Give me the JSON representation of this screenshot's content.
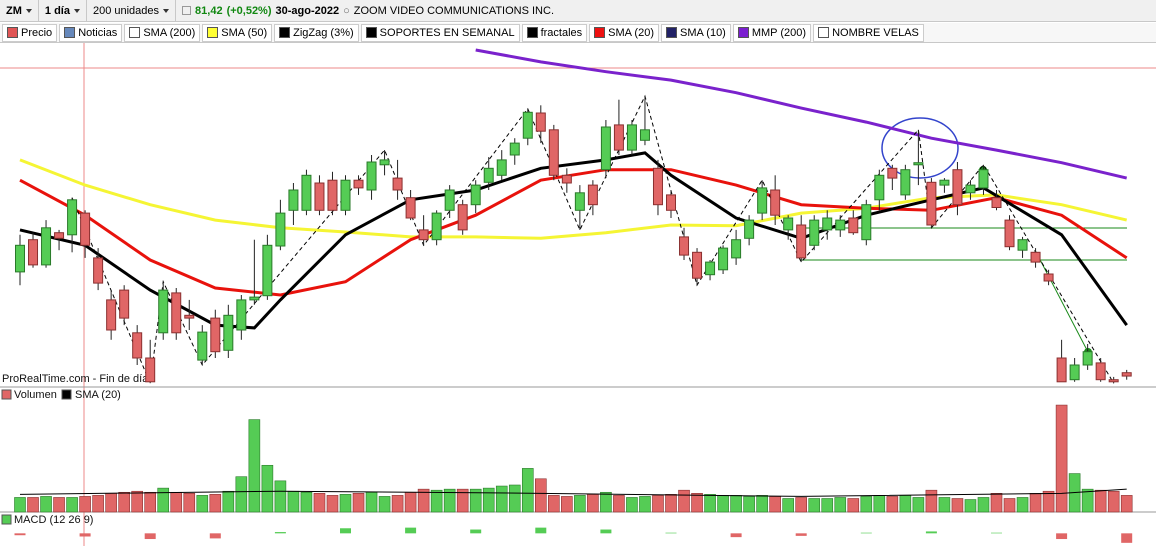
{
  "toolbar": {
    "symbol": "ZM",
    "period": "1 día",
    "units": "200 unidades",
    "price": "81,42",
    "change": "(+0,52%)",
    "date": "30-ago-2022",
    "name": "ZOOM VIDEO COMMUNICATIONS INC."
  },
  "legend": [
    {
      "label": "Precio",
      "color": "#e05555"
    },
    {
      "label": "Noticias",
      "color": "#6688bb"
    },
    {
      "label": "SMA (200)",
      "color": "#ffffff"
    },
    {
      "label": "SMA (50)",
      "color": "#ffff33"
    },
    {
      "label": "ZigZag (3%)",
      "color": "#000000"
    },
    {
      "label": "SOPORTES EN SEMANAL",
      "color": "#000000"
    },
    {
      "label": "fractales",
      "color": "#000000"
    },
    {
      "label": "SMA (20)",
      "color": "#ee1111"
    },
    {
      "label": "SMA (10)",
      "color": "#222266"
    },
    {
      "label": "MMP (200)",
      "color": "#7b1fd0"
    },
    {
      "label": "NOMBRE VELAS",
      "color": "#ffffff"
    }
  ],
  "watermark": "ProRealTime.com - Fin de día",
  "chart_data": [
    {
      "type": "candlestick",
      "ylim": [
        80,
        129
      ],
      "up_color": "#55cc55",
      "down_color": "#e06666",
      "candles": [
        [
          96.3,
          101.6,
          94.4,
          100.1
        ],
        [
          100.9,
          101.9,
          96.9,
          97.3
        ],
        [
          97.3,
          103.7,
          96.9,
          102.6
        ],
        [
          101.9,
          102.3,
          99.4,
          101.1
        ],
        [
          101.6,
          106.9,
          99.1,
          106.6
        ],
        [
          104.7,
          105.1,
          98.3,
          100.1
        ],
        [
          98.3,
          99.7,
          93.7,
          94.7
        ],
        [
          92.3,
          93.7,
          86.6,
          88.0
        ],
        [
          93.7,
          94.4,
          88.7,
          89.7
        ],
        [
          87.6,
          88.7,
          83.0,
          84.0
        ],
        [
          84.0,
          86.6,
          80.4,
          80.6
        ],
        [
          87.6,
          94.9,
          86.6,
          93.7
        ],
        [
          93.3,
          94.0,
          86.6,
          87.6
        ],
        [
          90.1,
          92.3,
          88.0,
          89.7
        ],
        [
          83.7,
          88.7,
          83.0,
          87.7
        ],
        [
          89.7,
          90.9,
          84.0,
          84.9
        ],
        [
          85.1,
          91.6,
          84.0,
          90.1
        ],
        [
          88.0,
          93.0,
          86.6,
          92.3
        ],
        [
          92.3,
          100.9,
          91.6,
          92.7
        ],
        [
          92.9,
          101.6,
          92.3,
          100.1
        ],
        [
          100.0,
          106.6,
          99.4,
          104.7
        ],
        [
          105.1,
          109.0,
          103.0,
          108.0
        ],
        [
          105.1,
          110.9,
          104.4,
          110.1
        ],
        [
          109.0,
          110.1,
          104.4,
          105.1
        ],
        [
          109.4,
          110.6,
          104.4,
          105.1
        ],
        [
          105.1,
          110.1,
          104.4,
          109.4
        ],
        [
          109.4,
          110.1,
          107.3,
          108.3
        ],
        [
          108.0,
          113.0,
          106.6,
          112.0
        ],
        [
          111.6,
          113.7,
          110.1,
          112.3
        ],
        [
          109.7,
          112.3,
          106.6,
          108.0
        ],
        [
          106.9,
          108.0,
          103.7,
          104.0
        ],
        [
          102.3,
          104.4,
          100.1,
          100.9
        ],
        [
          100.9,
          105.1,
          100.1,
          104.7
        ],
        [
          105.1,
          108.7,
          104.0,
          108.0
        ],
        [
          105.9,
          106.6,
          101.6,
          102.3
        ],
        [
          105.9,
          109.4,
          104.7,
          108.7
        ],
        [
          109.1,
          112.7,
          108.0,
          111.1
        ],
        [
          110.1,
          113.7,
          109.4,
          112.3
        ],
        [
          113.0,
          115.4,
          111.6,
          114.7
        ],
        [
          115.4,
          119.6,
          114.4,
          119.1
        ],
        [
          119.0,
          120.1,
          114.7,
          116.4
        ],
        [
          116.6,
          117.3,
          109.4,
          110.1
        ],
        [
          110.1,
          111.1,
          107.6,
          109.0
        ],
        [
          105.1,
          108.7,
          102.3,
          107.6
        ],
        [
          108.7,
          109.4,
          104.4,
          105.9
        ],
        [
          110.9,
          118.0,
          109.7,
          117.0
        ],
        [
          117.3,
          120.9,
          113.0,
          113.7
        ],
        [
          113.7,
          118.0,
          113.0,
          117.3
        ],
        [
          115.1,
          121.4,
          114.4,
          116.6
        ],
        [
          111.1,
          112.3,
          104.4,
          105.9
        ],
        [
          107.3,
          108.0,
          104.0,
          105.1
        ],
        [
          101.3,
          102.6,
          98.0,
          98.7
        ],
        [
          99.1,
          99.7,
          94.4,
          95.4
        ],
        [
          95.9,
          98.0,
          95.1,
          97.7
        ],
        [
          96.6,
          100.1,
          96.0,
          99.7
        ],
        [
          98.3,
          102.3,
          97.3,
          100.9
        ],
        [
          101.1,
          104.4,
          100.1,
          103.7
        ],
        [
          104.7,
          109.4,
          103.7,
          108.3
        ],
        [
          108.0,
          110.1,
          103.0,
          104.4
        ],
        [
          102.3,
          104.4,
          100.9,
          104.0
        ],
        [
          103.0,
          104.4,
          97.7,
          98.3
        ],
        [
          100.1,
          104.4,
          99.4,
          103.7
        ],
        [
          102.3,
          105.1,
          100.9,
          104.0
        ],
        [
          102.3,
          104.4,
          101.3,
          103.7
        ],
        [
          104.0,
          105.1,
          101.6,
          101.9
        ],
        [
          100.9,
          106.6,
          100.1,
          105.9
        ],
        [
          106.6,
          110.9,
          105.1,
          110.1
        ],
        [
          111.1,
          111.6,
          108.0,
          109.7
        ],
        [
          107.3,
          111.6,
          106.6,
          110.9
        ],
        [
          111.6,
          116.6,
          108.7,
          111.9
        ],
        [
          109.1,
          109.7,
          102.6,
          103.0
        ],
        [
          108.7,
          109.7,
          107.6,
          109.4
        ],
        [
          110.9,
          112.0,
          104.4,
          105.9
        ],
        [
          107.6,
          109.4,
          106.6,
          108.7
        ],
        [
          108.3,
          111.6,
          107.3,
          110.9
        ],
        [
          106.9,
          108.0,
          105.1,
          105.5
        ],
        [
          103.7,
          104.4,
          99.4,
          99.9
        ],
        [
          99.4,
          101.3,
          98.3,
          100.9
        ],
        [
          99.1,
          99.7,
          96.9,
          97.7
        ],
        [
          96.0,
          96.6,
          94.4,
          95.0
        ],
        [
          84.0,
          86.6,
          80.6,
          80.6
        ],
        [
          80.9,
          84.0,
          80.6,
          83.0
        ],
        [
          83.0,
          86.0,
          82.3,
          84.9
        ],
        [
          83.3,
          84.0,
          80.6,
          80.9
        ],
        [
          80.9,
          81.3,
          80.4,
          80.6
        ],
        [
          81.9,
          82.3,
          80.9,
          81.42
        ]
      ],
      "series": [
        {
          "color": "#f5f534",
          "x": [
            0,
            5,
            10,
            15,
            20,
            25,
            30,
            35,
            40,
            45,
            50,
            55,
            60,
            65,
            70,
            75,
            80,
            85
          ],
          "values": [
            112.3,
            108.7,
            105.9,
            103.7,
            102.6,
            102.0,
            101.3,
            101.3,
            101.1,
            101.9,
            103.0,
            102.9,
            104.7,
            105.4,
            106.9,
            107.3,
            105.9,
            103.7
          ]
        },
        {
          "color": "#e8120c",
          "x": [
            0,
            5,
            10,
            15,
            20,
            25,
            30,
            35,
            40,
            45,
            50,
            55,
            60,
            65,
            70,
            75,
            80,
            85
          ],
          "values": [
            109.4,
            104.4,
            98.0,
            94.0,
            93.0,
            94.9,
            100.9,
            104.4,
            109.4,
            110.9,
            110.9,
            108.7,
            105.9,
            105.4,
            105.1,
            106.9,
            104.4,
            98.3
          ]
        },
        {
          "color": "#7a22cc",
          "x": [
            35,
            40,
            45,
            50,
            55,
            60,
            65,
            70,
            75,
            80,
            85
          ],
          "values": [
            128.0,
            126.3,
            124.9,
            123.7,
            121.9,
            119.7,
            117.7,
            115.4,
            113.7,
            111.9,
            109.7
          ]
        },
        {
          "color": "#000000",
          "x": [
            0,
            5,
            10,
            15,
            18,
            20,
            25,
            30,
            35,
            40,
            45,
            48,
            50,
            55,
            60,
            65,
            70,
            74,
            80,
            85
          ],
          "values": [
            102.3,
            100.1,
            93.7,
            88.7,
            88.3,
            92.3,
            101.6,
            106.6,
            108.0,
            111.1,
            112.3,
            113.3,
            110.1,
            104.0,
            101.1,
            104.4,
            106.6,
            108.3,
            101.6,
            88.7
          ]
        },
        {
          "color": "#000000",
          "dash": true,
          "x": [
            4,
            10,
            11,
            14,
            28,
            31,
            39,
            43,
            48,
            52,
            57,
            60,
            69,
            70,
            74,
            84
          ],
          "values": [
            106.9,
            80.4,
            94.9,
            83.0,
            113.7,
            100.1,
            119.6,
            102.3,
            121.4,
            94.4,
            109.4,
            97.7,
            116.6,
            102.6,
            111.6,
            80.4
          ]
        }
      ]
    },
    {
      "type": "bar",
      "label": "Volumen",
      "ylim": [
        0,
        10.5
      ],
      "values": [
        1.4,
        1.4,
        1.5,
        1.4,
        1.4,
        1.5,
        1.6,
        1.8,
        1.9,
        2.0,
        1.9,
        2.3,
        1.9,
        1.8,
        1.6,
        1.7,
        2.0,
        3.4,
        8.9,
        4.5,
        3.0,
        2.0,
        1.9,
        1.8,
        1.6,
        1.7,
        1.8,
        1.9,
        1.5,
        1.6,
        1.9,
        2.2,
        2.1,
        2.2,
        2.2,
        2.2,
        2.3,
        2.5,
        2.6,
        4.2,
        3.2,
        1.6,
        1.5,
        1.6,
        1.7,
        1.9,
        1.6,
        1.4,
        1.5,
        1.6,
        1.7,
        2.1,
        1.8,
        1.7,
        1.6,
        1.6,
        1.5,
        1.6,
        1.5,
        1.3,
        1.4,
        1.3,
        1.3,
        1.4,
        1.3,
        1.5,
        1.6,
        1.5,
        1.6,
        1.4,
        2.1,
        1.4,
        1.3,
        1.2,
        1.4,
        1.8,
        1.3,
        1.4,
        1.8,
        2.0,
        10.3,
        3.7,
        2.2,
        2.1,
        2.0,
        1.6
      ],
      "series": [
        {
          "name": "SMA (20)",
          "color": "#000000",
          "x": [
            0,
            20,
            40,
            60,
            80,
            85
          ],
          "values": [
            1.7,
            2.0,
            1.8,
            1.5,
            1.8,
            2.2
          ]
        }
      ]
    },
    {
      "type": "bar",
      "title": "MACD (12 26 9)",
      "ylim": [
        -2,
        1
      ],
      "color": "#55cc55",
      "neg_color": "#e06666",
      "x": [
        0,
        5,
        10,
        15,
        20,
        25,
        30,
        35,
        40,
        45,
        50,
        55,
        60,
        65,
        70,
        75,
        80,
        85
      ],
      "values": [
        -0.3,
        -0.5,
        -0.9,
        -0.8,
        0.2,
        0.8,
        0.9,
        0.6,
        0.9,
        0.6,
        0.1,
        -0.6,
        -0.4,
        0.1,
        0.3,
        0.1,
        -0.9,
        -1.5
      ]
    }
  ]
}
